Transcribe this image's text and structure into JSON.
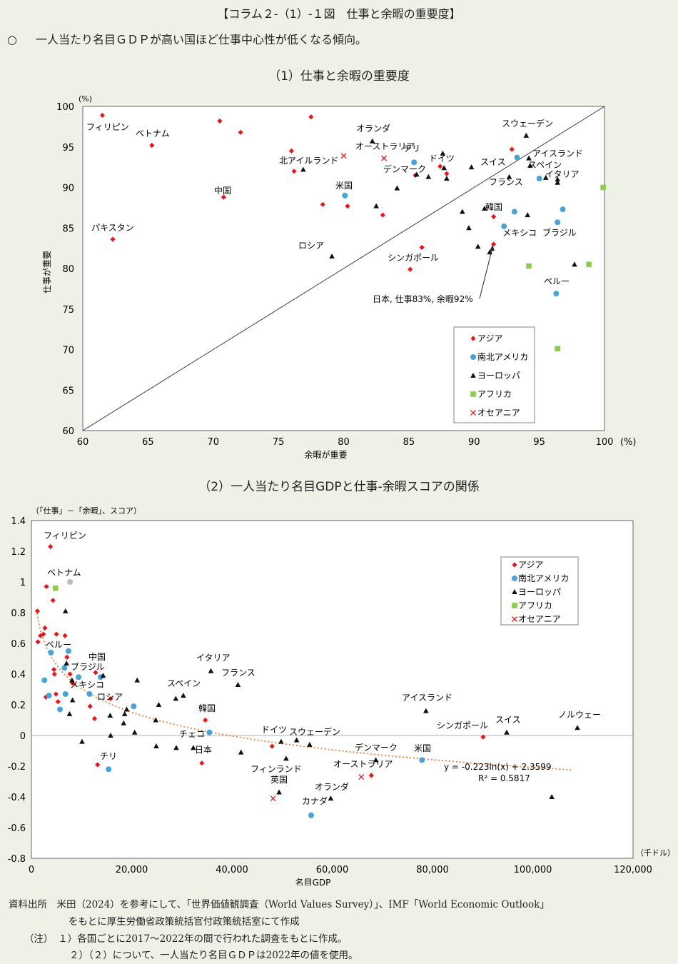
{
  "figure_title": "【コラム２-（1）-１図　仕事と余暇の重要度】",
  "summary": {
    "marker": "○",
    "text": "一人当たり名目ＧＤＰが高い国ほど仕事中心性が低くなる傾向。"
  },
  "colors": {
    "asia": "#e8171c",
    "americas": "#4aa3d6",
    "europe": "#111111",
    "africa": "#8dcc4e",
    "oceania": "#e8171c",
    "trend": "#ed7d31",
    "gray": "#bbbbbb"
  },
  "chart_data": [
    {
      "type": "scatter",
      "title": "（1）仕事と余暇の重要度",
      "xlabel": "余暇が重要",
      "ylabel": "仕事が重要",
      "x_unit": "(%)",
      "y_unit": "(%)",
      "xlim": [
        60,
        100
      ],
      "ylim": [
        60,
        100
      ],
      "x_ticks": [
        60,
        65,
        70,
        75,
        80,
        85,
        90,
        95,
        100
      ],
      "y_ticks": [
        60,
        65,
        70,
        75,
        80,
        85,
        90,
        95,
        100
      ],
      "reference_line": "y = x",
      "legend": [
        "アジア",
        "南北アメリカ",
        "ヨーロッパ",
        "アフリカ",
        "オセアニア"
      ],
      "annotation": "日本, 仕事83%, 余暇92%",
      "series": [
        {
          "name": "アジア",
          "points": [
            [
              61.5,
              98.9
            ],
            [
              65.3,
              95.2
            ],
            [
              62.3,
              83.6
            ],
            [
              70.5,
              98.2
            ],
            [
              72.1,
              96.8
            ],
            [
              77.5,
              98.7
            ],
            [
              70.8,
              88.8
            ],
            [
              76,
              94.5
            ],
            [
              76.2,
              92
            ],
            [
              78.4,
              87.9
            ],
            [
              80.3,
              87.7
            ],
            [
              83,
              86.6
            ],
            [
              85.1,
              79.9
            ],
            [
              86,
              82.6
            ],
            [
              85.5,
              91.5
            ],
            [
              87.4,
              92.6
            ],
            [
              87.9,
              91.7
            ],
            [
              91.5,
              86.4
            ],
            [
              92.9,
              94.7
            ],
            [
              91.5,
              83
            ]
          ]
        },
        {
          "name": "南北アメリカ",
          "points": [
            [
              80.1,
              89
            ],
            [
              85.4,
              93.1
            ],
            [
              93.1,
              87
            ],
            [
              93.3,
              93.7
            ],
            [
              95,
              91.1
            ],
            [
              96.4,
              85.7
            ],
            [
              96.8,
              87.3
            ],
            [
              92.3,
              85.2
            ],
            [
              96.3,
              76.9
            ]
          ]
        },
        {
          "name": "ヨーロッパ",
          "points": [
            [
              76.9,
              92.2
            ],
            [
              79.1,
              81.5
            ],
            [
              82.2,
              95.7
            ],
            [
              82.5,
              87.7
            ],
            [
              84.1,
              89.9
            ],
            [
              85.6,
              91.6
            ],
            [
              86.5,
              91.3
            ],
            [
              87.6,
              94.2
            ],
            [
              87.7,
              92.4
            ],
            [
              87.9,
              91.1
            ],
            [
              89.8,
              92.5
            ],
            [
              89.1,
              87
            ],
            [
              89.6,
              85
            ],
            [
              90.3,
              82.7
            ],
            [
              90.8,
              87.4
            ],
            [
              91.2,
              82
            ],
            [
              92.7,
              91.3
            ],
            [
              94.1,
              86.6
            ],
            [
              94,
              96.4
            ],
            [
              94.2,
              93.6
            ],
            [
              94.3,
              92.7
            ],
            [
              95.5,
              91.2
            ],
            [
              96.4,
              91
            ],
            [
              96.4,
              90.6
            ],
            [
              97.7,
              80.5
            ]
          ]
        },
        {
          "name": "アフリカ",
          "points": [
            [
              94.2,
              80.3
            ],
            [
              96.4,
              70.1
            ],
            [
              98.8,
              80.5
            ],
            [
              99.9,
              90
            ]
          ]
        },
        {
          "name": "オセアニア",
          "points": [
            [
              80,
              93.9
            ],
            [
              83.1,
              93.6
            ]
          ]
        }
      ],
      "labels": [
        "フィリピン",
        "ベトナム",
        "パキスタン",
        "中国",
        "北アイルランド",
        "ロシア",
        "米国",
        "オランダ",
        "オーストラリア",
        "チリ",
        "デンマーク",
        "ドイツ",
        "シンガポール",
        "スウェーデン",
        "スイス",
        "アイスランド",
        "スペイン",
        "イタリア",
        "フランス",
        "韓国",
        "メキシコ",
        "ブラジル",
        "ペルー"
      ]
    },
    {
      "type": "scatter",
      "title": "（2）一人当たり名目GDPと仕事-余暇スコアの関係",
      "xlabel": "名目GDP",
      "ylabel": "（「仕事」－「余暇」、スコア）",
      "x_unit": "（千ドル）",
      "xlim": [
        0,
        120000
      ],
      "ylim": [
        -0.8,
        1.4
      ],
      "x_ticks": [
        0,
        20000,
        40000,
        60000,
        80000,
        100000,
        120000
      ],
      "x_tick_labels": [
        "0",
        "20,000",
        "40,000",
        "60,000",
        "80,000",
        "100,000",
        "120,000"
      ],
      "y_ticks": [
        -0.8,
        -0.6,
        -0.4,
        -0.2,
        0,
        0.2,
        0.4,
        0.6,
        0.8,
        1,
        1.2,
        1.4
      ],
      "y_tick_labels": [
        "-0.8",
        "-0.6",
        "-0.4",
        "-0.2",
        "0",
        "0.2",
        "0.4",
        "0.6",
        "0.8",
        "1",
        "1.2",
        "1.4"
      ],
      "legend": [
        "アジア",
        "南北アメリカ",
        "ヨーロッパ",
        "アフリカ",
        "オセアニア"
      ],
      "trendline": {
        "a": -0.223,
        "b": 2.3599,
        "x_range": [
          1000,
          108000
        ]
      },
      "equation": "y = -0.223ln(x) + 2.3599",
      "r_squared": "R² = 0.5817",
      "series": [
        {
          "name": "アジア",
          "points": [
            [
              3800,
              1.23
            ],
            [
              1200,
              0.81
            ],
            [
              1300,
              0.61
            ],
            [
              1800,
              0.65
            ],
            [
              2400,
              0.66
            ],
            [
              2700,
              0.7
            ],
            [
              3000,
              0.97
            ],
            [
              2900,
              0.25
            ],
            [
              4300,
              0.88
            ],
            [
              4500,
              0.43
            ],
            [
              4600,
              0.4
            ],
            [
              5000,
              0.66
            ],
            [
              4900,
              0.27
            ],
            [
              5300,
              0.22
            ],
            [
              6700,
              0.65
            ],
            [
              7100,
              0.51
            ],
            [
              7700,
              0.4
            ],
            [
              8200,
              0.34
            ],
            [
              12600,
              0.11
            ],
            [
              12800,
              0.41
            ],
            [
              13200,
              -0.19
            ],
            [
              11700,
              0.19
            ],
            [
              15800,
              0.24
            ],
            [
              34000,
              -0.18
            ],
            [
              34700,
              0.1
            ],
            [
              48000,
              -0.07
            ],
            [
              67800,
              -0.26
            ],
            [
              90100,
              -0.01
            ]
          ]
        },
        {
          "name": "南北アメリカ",
          "points": [
            [
              2600,
              0.36
            ],
            [
              3500,
              0.26
            ],
            [
              3900,
              0.54
            ],
            [
              5700,
              0.17
            ],
            [
              6600,
              0.44
            ],
            [
              6800,
              0.27
            ],
            [
              7400,
              0.55
            ],
            [
              9400,
              0.38
            ],
            [
              11600,
              0.27
            ],
            [
              13800,
              0.38
            ],
            [
              15400,
              -0.22
            ],
            [
              20400,
              0.19
            ],
            [
              35500,
              0.02
            ],
            [
              55800,
              -0.52
            ],
            [
              77900,
              -0.16
            ]
          ]
        },
        {
          "name": "ヨーロッパ",
          "points": [
            [
              6800,
              0.81
            ],
            [
              7000,
              0.47
            ],
            [
              7600,
              0.14
            ],
            [
              8100,
              0.36
            ],
            [
              8200,
              0.23
            ],
            [
              10100,
              -0.04
            ],
            [
              14300,
              0.39
            ],
            [
              15700,
              0.13
            ],
            [
              15800,
              0
            ],
            [
              18400,
              0.08
            ],
            [
              18600,
              0.14
            ],
            [
              19000,
              0.17
            ],
            [
              20600,
              0.02
            ],
            [
              21100,
              0.36
            ],
            [
              24800,
              0.1
            ],
            [
              25400,
              0.2
            ],
            [
              24900,
              -0.07
            ],
            [
              28800,
              0.24
            ],
            [
              28900,
              -0.08
            ],
            [
              30300,
              0.26
            ],
            [
              32300,
              -0.08
            ],
            [
              35800,
              0.42
            ],
            [
              41200,
              0.33
            ],
            [
              41800,
              -0.11
            ],
            [
              49400,
              -0.37
            ],
            [
              49800,
              -0.04
            ],
            [
              50800,
              -0.15
            ],
            [
              52900,
              -0.03
            ],
            [
              55500,
              -0.06
            ],
            [
              59700,
              -0.41
            ],
            [
              68700,
              -0.16
            ],
            [
              78700,
              0.16
            ],
            [
              94800,
              0.02
            ],
            [
              103800,
              -0.4
            ],
            [
              108900,
              0.05
            ]
          ]
        },
        {
          "name": "アフリカ",
          "points": [
            [
              4800,
              0.96
            ]
          ]
        },
        {
          "name": "オセアニア",
          "points": [
            [
              48200,
              -0.41
            ],
            [
              65800,
              -0.27
            ]
          ]
        },
        {
          "name": "その他",
          "points": [
            [
              7700,
              1
            ]
          ]
        }
      ],
      "labels": [
        "フィリピン",
        "ベトナム",
        "ペルー",
        "中国",
        "ブラジル",
        "メキシコ",
        "ロシア",
        "チリ",
        "イタリア",
        "スペイン",
        "フランス",
        "韓国",
        "チェコ",
        "日本",
        "ドイツ",
        "スウェーデン",
        "フィンランド",
        "英国",
        "オランダ",
        "カナダ",
        "デンマーク",
        "オーストラリア",
        "米国",
        "アイスランド",
        "シンガポール",
        "スイス",
        "ノルウェー"
      ]
    }
  ],
  "source": {
    "line1": "資料出所　米田（2024）を参考にして、「世界価値観調査（World Values Survey）」、IMF「World Economic Outlook」",
    "line2": "をもとに厚生労働省政策統括官付政策統括室にて作成",
    "note1": "（注）　１）各国ごとに2017～2022年の間で行われた調査をもとに作成。",
    "note2": "２）（２）について、一人当たり名目ＧＤＰは2022年の値を使用。"
  }
}
